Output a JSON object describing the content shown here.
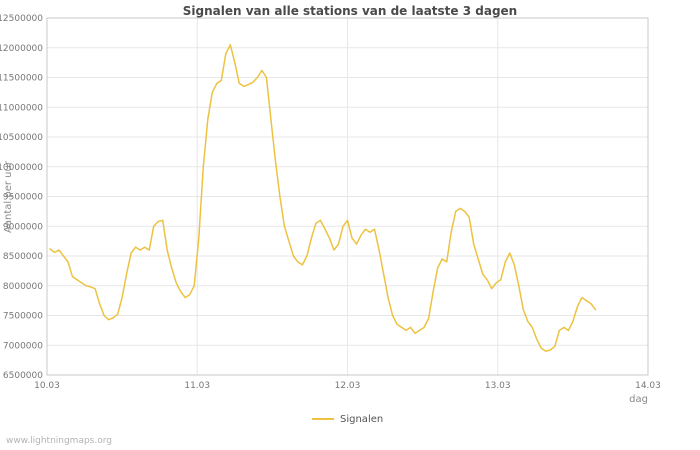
{
  "watermark": "www.lightningmaps.org",
  "chart_data": {
    "type": "line",
    "title": "Signalen van alle stations van de laatste 3 dagen",
    "xlabel": "dag",
    "ylabel": "Aantal per uur",
    "xlim": [
      10.03,
      14.03
    ],
    "ylim": [
      6500000,
      12500000
    ],
    "y_tick_step": 500000,
    "x_ticks": [
      10.03,
      11.03,
      12.03,
      13.03,
      14.03
    ],
    "x_tick_labels": [
      "10.03",
      "11.03",
      "12.03",
      "13.03",
      "14.03"
    ],
    "grid": true,
    "legend": {
      "position": "bottom-center",
      "entries": [
        "Signalen"
      ]
    },
    "series": [
      {
        "name": "Signalen",
        "color": "#edc240",
        "x": [
          10.05,
          10.08,
          10.11,
          10.14,
          10.17,
          10.2,
          10.23,
          10.26,
          10.29,
          10.32,
          10.35,
          10.38,
          10.41,
          10.44,
          10.47,
          10.5,
          10.53,
          10.56,
          10.59,
          10.62,
          10.65,
          10.68,
          10.71,
          10.74,
          10.77,
          10.8,
          10.83,
          10.86,
          10.89,
          10.92,
          10.95,
          10.98,
          11.01,
          11.04,
          11.07,
          11.1,
          11.13,
          11.16,
          11.19,
          11.22,
          11.25,
          11.28,
          11.31,
          11.34,
          11.37,
          11.4,
          11.43,
          11.46,
          11.49,
          11.52,
          11.55,
          11.58,
          11.61,
          11.64,
          11.67,
          11.7,
          11.73,
          11.76,
          11.79,
          11.82,
          11.85,
          11.88,
          11.91,
          11.94,
          11.97,
          12.0,
          12.03,
          12.06,
          12.09,
          12.12,
          12.15,
          12.18,
          12.21,
          12.24,
          12.27,
          12.3,
          12.33,
          12.36,
          12.39,
          12.42,
          12.45,
          12.48,
          12.51,
          12.54,
          12.57,
          12.6,
          12.63,
          12.66,
          12.69,
          12.72,
          12.75,
          12.78,
          12.81,
          12.84,
          12.87,
          12.9,
          12.93,
          12.96,
          12.99,
          13.02,
          13.05,
          13.08,
          13.11,
          13.14,
          13.17,
          13.2,
          13.23,
          13.26,
          13.29,
          13.32,
          13.35,
          13.38,
          13.41,
          13.44,
          13.47,
          13.5,
          13.53,
          13.56,
          13.59,
          13.62,
          13.65,
          13.68
        ],
        "y": [
          8620000,
          8560000,
          8600000,
          8500000,
          8400000,
          8150000,
          8100000,
          8050000,
          8000000,
          7980000,
          7950000,
          7700000,
          7500000,
          7430000,
          7460000,
          7520000,
          7800000,
          8200000,
          8550000,
          8650000,
          8600000,
          8650000,
          8600000,
          9000000,
          9080000,
          9100000,
          8600000,
          8300000,
          8050000,
          7900000,
          7800000,
          7850000,
          8000000,
          8800000,
          10000000,
          10800000,
          11250000,
          11400000,
          11450000,
          11900000,
          12050000,
          11750000,
          11400000,
          11350000,
          11380000,
          11420000,
          11500000,
          11620000,
          11500000,
          10800000,
          10100000,
          9500000,
          9000000,
          8750000,
          8500000,
          8400000,
          8350000,
          8500000,
          8800000,
          9050000,
          9100000,
          8950000,
          8800000,
          8600000,
          8700000,
          9000000,
          9100000,
          8800000,
          8700000,
          8850000,
          8950000,
          8900000,
          8950000,
          8600000,
          8200000,
          7800000,
          7500000,
          7350000,
          7300000,
          7250000,
          7300000,
          7200000,
          7250000,
          7300000,
          7450000,
          7900000,
          8300000,
          8450000,
          8400000,
          8900000,
          9250000,
          9300000,
          9250000,
          9150000,
          8700000,
          8450000,
          8200000,
          8100000,
          7950000,
          8050000,
          8100000,
          8400000,
          8550000,
          8350000,
          8000000,
          7600000,
          7400000,
          7300000,
          7100000,
          6950000,
          6900000,
          6920000,
          6980000,
          7250000,
          7300000,
          7250000,
          7400000,
          7650000,
          7800000,
          7750000,
          7700000,
          7600000
        ]
      }
    ]
  }
}
